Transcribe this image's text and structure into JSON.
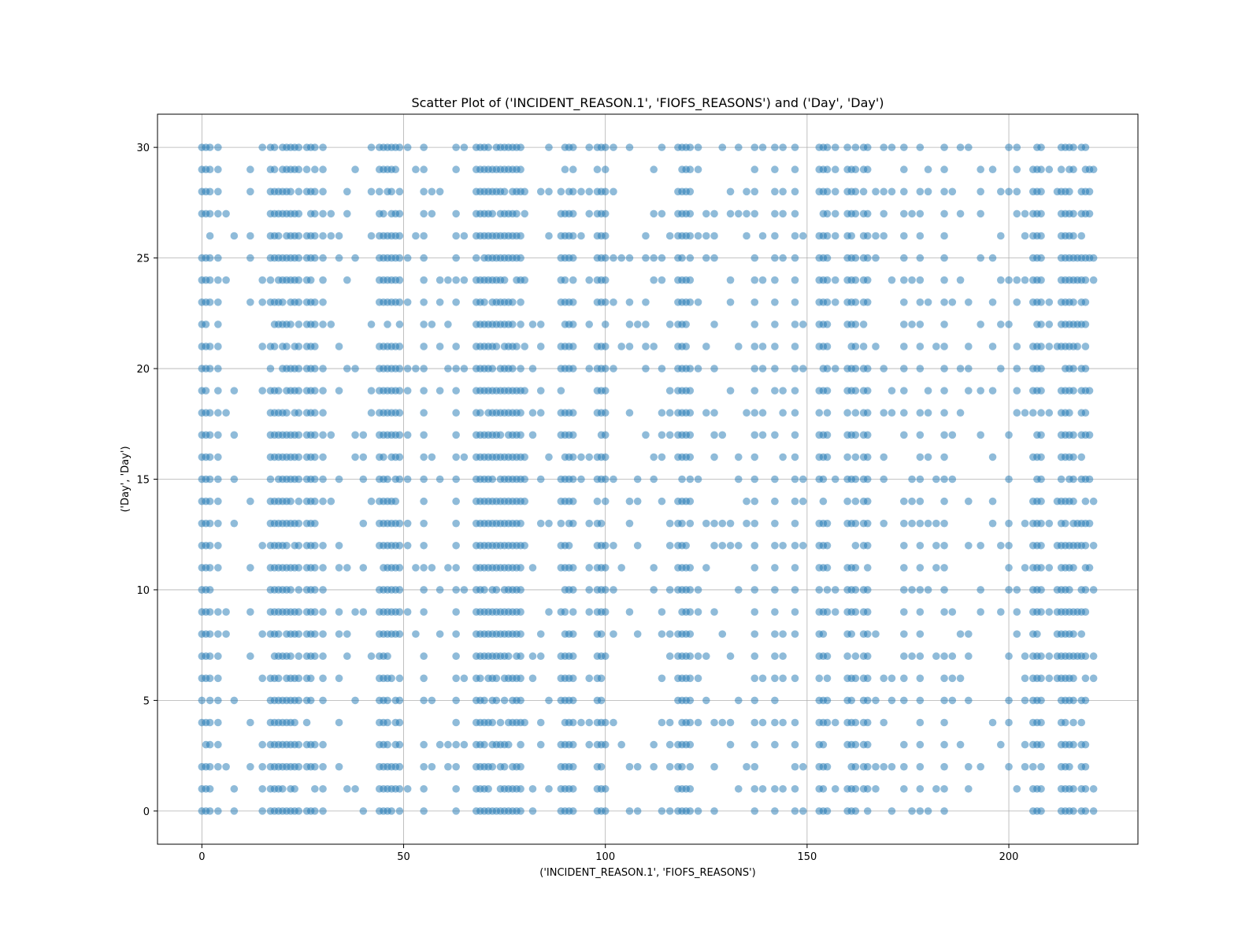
{
  "chart_data": {
    "type": "scatter",
    "title": "Scatter Plot of ('INCIDENT_REASON.1', 'FIOFS_REASONS') and ('Day', 'Day')",
    "xlabel": "('INCIDENT_REASON.1', 'FIOFS_REASONS')",
    "ylabel": "('Day', 'Day')",
    "xlim": [
      -11,
      232
    ],
    "ylim": [
      -1.5,
      31.5
    ],
    "x_ticks": [
      0,
      50,
      100,
      150,
      200
    ],
    "y_ticks": [
      0,
      5,
      10,
      15,
      20,
      25,
      30
    ],
    "grid": true,
    "marker_color": "#1f77b4",
    "marker_alpha": 0.5,
    "y_values": [
      0,
      1,
      2,
      3,
      4,
      5,
      6,
      7,
      8,
      9,
      10,
      11,
      12,
      13,
      14,
      15,
      16,
      17,
      18,
      19,
      20,
      21,
      22,
      23,
      24,
      25,
      26,
      27,
      28,
      29,
      30
    ],
    "dense_x_columns": [
      0,
      1,
      2,
      4,
      17,
      18,
      19,
      20,
      21,
      22,
      23,
      24,
      26,
      27,
      28,
      30,
      44,
      45,
      46,
      47,
      48,
      49,
      55,
      63,
      68,
      69,
      70,
      71,
      72,
      73,
      74,
      75,
      76,
      77,
      78,
      79,
      89,
      90,
      91,
      92,
      98,
      99,
      100,
      118,
      119,
      120,
      121,
      137,
      142,
      147,
      153,
      154,
      155,
      160,
      161,
      162,
      164,
      165,
      174,
      178,
      184,
      206,
      207,
      208,
      213,
      214,
      215,
      216,
      218,
      219
    ],
    "sparse_x_columns": [
      6,
      8,
      12,
      15,
      32,
      34,
      36,
      38,
      40,
      42,
      51,
      53,
      57,
      59,
      61,
      65,
      80,
      82,
      84,
      86,
      94,
      96,
      102,
      104,
      106,
      108,
      110,
      112,
      114,
      116,
      123,
      125,
      127,
      129,
      131,
      133,
      135,
      139,
      144,
      149,
      157,
      167,
      169,
      171,
      176,
      180,
      182,
      186,
      188,
      190,
      193,
      196,
      198,
      200,
      202,
      204,
      210,
      212,
      217,
      220,
      221
    ]
  }
}
